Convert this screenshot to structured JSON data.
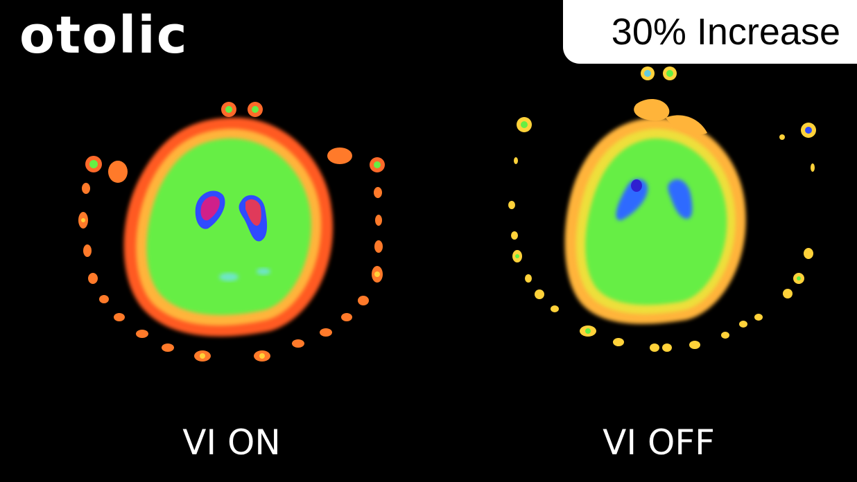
{
  "brand": {
    "name": "otolic"
  },
  "badge": {
    "text": "30% Increase"
  },
  "panels": [
    {
      "label": "VI ON"
    },
    {
      "label": "VI OFF"
    }
  ],
  "colors": {
    "background": "#000000",
    "badge_bg": "#ffffff",
    "scan_green": "#66ee44",
    "scan_orange": "#ff6a2a",
    "scan_yellow": "#ffd23a",
    "scan_blue": "#2f4bff",
    "scan_magenta": "#d0208a"
  }
}
